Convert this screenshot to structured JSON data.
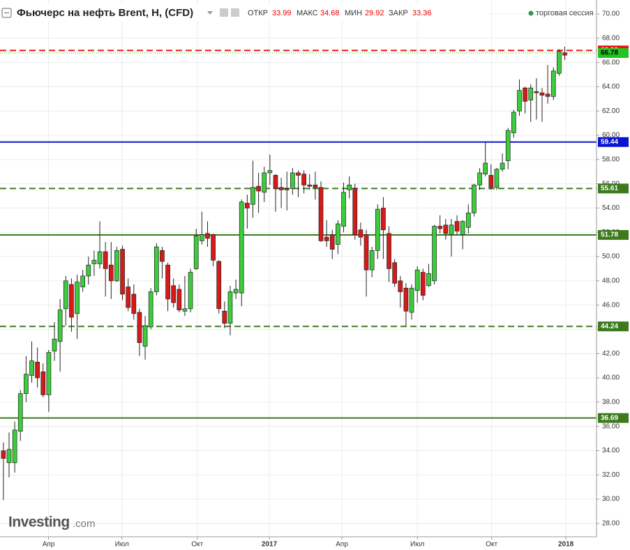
{
  "chart_data": {
    "type": "candlestick",
    "title": "Фьючерс на нефть Brent, H, (CFD)",
    "ohlc_labels": [
      "ОТКР",
      "МАКС",
      "МИН",
      "ЗАКР"
    ],
    "session": "торговая сессия",
    "logo": "Investing",
    "logo_suffix": ".com",
    "up_color": "#3ccc3c",
    "down_color": "#d61a1a",
    "grid": true,
    "open": [
      33.99,
      33.0,
      33.0,
      35.6,
      38.7,
      40.2,
      41.3,
      40.5,
      38.6,
      42.2,
      43.0,
      45.7,
      47.7,
      45.3,
      47.5,
      48.4,
      49.4,
      49.4,
      50.4,
      49.3,
      48.0,
      50.6,
      47.5,
      46.9,
      45.4,
      42.6,
      44.2,
      47.1,
      50.5,
      49.3,
      47.6,
      47.3,
      45.5,
      45.7,
      49.0,
      51.3,
      51.9,
      51.8,
      49.6,
      45.5,
      44.5,
      47.0,
      47.0,
      54.4,
      54.3,
      55.8,
      55.3,
      56.9,
      56.7,
      55.7,
      55.6,
      55.6,
      56.9,
      56.8,
      55.9,
      55.9,
      55.7,
      51.6,
      51.8,
      51.0,
      52.5,
      55.5,
      55.6,
      52.2,
      51.8,
      48.9,
      50.5,
      54.0,
      51.9,
      49.5,
      48.0,
      47.4,
      45.4,
      47.2,
      48.7,
      47.6,
      48.0,
      52.5,
      52.6,
      51.8,
      52.9,
      51.8,
      52.4,
      53.6,
      55.9,
      56.8,
      56.7,
      55.7,
      57.2,
      57.9,
      60.2,
      62.0,
      63.9,
      62.9,
      63.6,
      63.5,
      63.4,
      63.2,
      65.1,
      66.8
    ],
    "high": [
      34.68,
      35.5,
      36.4,
      39.0,
      41.8,
      43.0,
      42.5,
      41.2,
      42.3,
      44.6,
      46.5,
      48.4,
      48.2,
      48.5,
      48.9,
      50.0,
      50.5,
      52.9,
      51.2,
      51.2,
      50.8,
      50.9,
      48.2,
      47.7,
      45.7,
      45.1,
      47.4,
      51.1,
      50.8,
      49.5,
      48.2,
      47.7,
      48.4,
      49.0,
      52.3,
      53.7,
      52.9,
      51.9,
      49.7,
      46.3,
      47.6,
      48.1,
      54.7,
      55.1,
      57.9,
      56.9,
      57.4,
      58.4,
      56.8,
      56.5,
      57.0,
      57.3,
      57.1,
      57.1,
      56.8,
      57.0,
      56.2,
      53.0,
      52.2,
      53.0,
      56.1,
      56.6,
      56.0,
      52.8,
      52.2,
      50.8,
      54.3,
      54.9,
      52.5,
      49.8,
      48.4,
      47.8,
      47.7,
      49.2,
      49.0,
      49.4,
      52.6,
      53.4,
      53.1,
      53.1,
      53.4,
      53.0,
      54.3,
      56.0,
      57.3,
      59.5,
      57.6,
      57.3,
      58.5,
      60.6,
      62.1,
      64.6,
      64.0,
      64.2,
      64.7,
      63.9,
      65.8,
      65.6,
      67.1,
      67.3
    ],
    "low": [
      29.92,
      31.8,
      32.2,
      34.8,
      38.0,
      39.6,
      39.2,
      38.4,
      37.2,
      41.4,
      40.5,
      44.3,
      43.8,
      43.2,
      47.1,
      47.7,
      48.4,
      49.0,
      46.7,
      46.5,
      47.9,
      46.4,
      45.5,
      44.8,
      41.8,
      41.5,
      44.0,
      46.8,
      48.2,
      45.5,
      45.8,
      45.4,
      45.1,
      45.4,
      48.9,
      51.0,
      50.8,
      49.2,
      45.3,
      44.1,
      43.5,
      46.5,
      45.9,
      52.3,
      53.2,
      53.6,
      54.5,
      55.9,
      53.7,
      54.0,
      53.8,
      55.1,
      54.9,
      55.2,
      55.5,
      54.7,
      51.2,
      50.8,
      49.8,
      50.2,
      52.0,
      54.8,
      51.4,
      50.9,
      46.7,
      48.3,
      49.8,
      49.8,
      47.9,
      47.5,
      45.8,
      44.3,
      44.8,
      46.2,
      46.4,
      47.5,
      47.7,
      51.9,
      51.4,
      50.0,
      51.8,
      50.6,
      51.9,
      53.3,
      55.5,
      56.6,
      55.5,
      55.5,
      57.0,
      57.2,
      59.8,
      61.6,
      61.8,
      61.1,
      61.3,
      61.1,
      62.6,
      62.9,
      64.9,
      66.2
    ],
    "close": [
      33.36,
      34.1,
      35.7,
      38.7,
      40.3,
      41.4,
      40.0,
      38.6,
      42.1,
      43.2,
      45.6,
      48.0,
      45.0,
      47.9,
      48.4,
      49.3,
      49.7,
      50.4,
      49.0,
      48.0,
      50.5,
      46.9,
      45.8,
      45.3,
      42.9,
      44.3,
      47.1,
      50.8,
      49.6,
      46.5,
      46.2,
      45.6,
      45.7,
      48.7,
      51.7,
      51.8,
      51.5,
      49.7,
      45.7,
      44.5,
      47.1,
      47.3,
      54.5,
      54.0,
      55.7,
      55.4,
      56.9,
      57.1,
      55.6,
      55.5,
      55.5,
      56.9,
      56.7,
      55.9,
      55.8,
      55.7,
      51.3,
      51.3,
      50.6,
      52.7,
      55.3,
      55.9,
      51.8,
      51.6,
      48.9,
      50.5,
      53.9,
      52.2,
      49.0,
      47.8,
      47.1,
      45.5,
      47.4,
      48.9,
      46.8,
      48.6,
      52.5,
      52.3,
      51.9,
      52.6,
      52.1,
      52.9,
      53.6,
      55.9,
      56.9,
      57.7,
      55.7,
      57.2,
      57.7,
      60.4,
      61.9,
      63.7,
      62.8,
      63.9,
      63.5,
      63.3,
      63.2,
      65.3,
      66.9,
      66.6
    ],
    "xlim": [
      -0.6,
      104.6
    ],
    "xticks": [
      {
        "value": 7.96,
        "label": "Апр"
      },
      {
        "value": 20.9,
        "label": "Июл"
      },
      {
        "value": 34.2,
        "label": "Окт"
      },
      {
        "value": 46.9,
        "label": "2017"
      },
      {
        "value": 59.7,
        "label": "Апр"
      },
      {
        "value": 73.0,
        "label": "Июл"
      },
      {
        "value": 86.1,
        "label": "Окт"
      },
      {
        "value": 99.2,
        "label": "2018"
      }
    ],
    "ylim": [
      26.9,
      71.15
    ],
    "yticks": [
      {
        "value": 28,
        "label": "28.00"
      },
      {
        "value": 30,
        "label": "30.00"
      },
      {
        "value": 32,
        "label": "32.00"
      },
      {
        "value": 34,
        "label": "34.00"
      },
      {
        "value": 36,
        "label": "36.00"
      },
      {
        "value": 38,
        "label": "38.00"
      },
      {
        "value": 40,
        "label": "40.00"
      },
      {
        "value": 42,
        "label": "42.00"
      },
      {
        "value": 44,
        "label": "44.00"
      },
      {
        "value": 46,
        "label": "46.00"
      },
      {
        "value": 48,
        "label": "48.00"
      },
      {
        "value": 50,
        "label": "50.00"
      },
      {
        "value": 52,
        "label": "52.00"
      },
      {
        "value": 54,
        "label": "54.00"
      },
      {
        "value": 56,
        "label": "56.00"
      },
      {
        "value": 58,
        "label": "58.00"
      },
      {
        "value": 60,
        "label": "60.00"
      },
      {
        "value": 62,
        "label": "62.00"
      },
      {
        "value": 64,
        "label": "64.00"
      },
      {
        "value": 66,
        "label": "66.00"
      },
      {
        "value": 68,
        "label": "68.00"
      },
      {
        "value": 70,
        "label": "70.00"
      }
    ],
    "lines": [
      {
        "value": 66.99,
        "color": "#f01010",
        "style": "dashed",
        "text_color": "#ffffff"
      },
      {
        "value": 66.78,
        "color": "#22c422",
        "style": "dotted",
        "text_color": "#000000"
      },
      {
        "value": 59.44,
        "color": "#0a14d0",
        "style": "solid",
        "text_color": "#ffffff"
      },
      {
        "value": 55.61,
        "color": "#3c7a1c",
        "style": "dashed",
        "text_color": "#ffffff"
      },
      {
        "value": 51.78,
        "color": "#3c7a1c",
        "style": "solid",
        "text_color": "#ffffff"
      },
      {
        "value": 44.24,
        "color": "#3c7a1c",
        "style": "dashed",
        "text_color": "#ffffff"
      },
      {
        "value": 36.69,
        "color": "#3c7a1c",
        "style": "solid",
        "text_color": "#ffffff"
      }
    ]
  }
}
